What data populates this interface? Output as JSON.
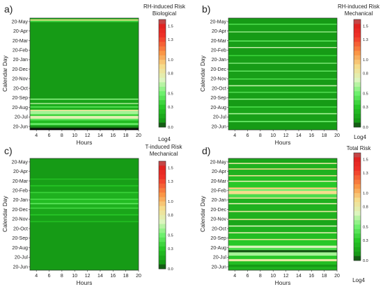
{
  "chart_data": [
    {
      "type": "heatmap",
      "panel_label": "a)",
      "title": "RH-induced Risk",
      "subtitle": "Biological",
      "xlabel": "Hours",
      "ylabel": "Calendar Day",
      "x_ticks": [
        "4",
        "6",
        "8",
        "10",
        "12",
        "14",
        "16",
        "18",
        "20"
      ],
      "y_ticks": [
        "20-May",
        "20-Apr",
        "20-Mar",
        "20-Feb",
        "20-Jan",
        "20-Dec",
        "20-Nov",
        "20-Oct",
        "20-Sep",
        "20-Aug",
        "20-Jul",
        "20-Jun"
      ],
      "xlim": [
        3,
        20
      ],
      "colorbar": {
        "ticks": [
          "1.5",
          "1.3",
          "1.0",
          "0.8",
          "0.5",
          "0.3",
          "0.0"
        ],
        "range": [
          0,
          1.6
        ],
        "scale_label": "Log4"
      },
      "bands": [
        {
          "from": 0.0,
          "to": 0.012,
          "v": 0.2
        },
        {
          "from": 0.012,
          "to": 0.022,
          "v": 0.9
        },
        {
          "from": 0.022,
          "to": 0.035,
          "v": 0.38
        },
        {
          "from": 0.035,
          "to": 0.72,
          "v": 0.1
        },
        {
          "from": 0.72,
          "to": 0.73,
          "v": 0.55
        },
        {
          "from": 0.73,
          "to": 0.76,
          "v": 0.14
        },
        {
          "from": 0.76,
          "to": 0.768,
          "v": 0.65
        },
        {
          "from": 0.768,
          "to": 0.79,
          "v": 0.18
        },
        {
          "from": 0.79,
          "to": 0.8,
          "v": 0.45
        },
        {
          "from": 0.8,
          "to": 0.82,
          "v": 0.2
        },
        {
          "from": 0.82,
          "to": 0.83,
          "v": 0.85
        },
        {
          "from": 0.83,
          "to": 0.86,
          "v": 0.6
        },
        {
          "from": 0.86,
          "to": 0.875,
          "v": 0.35
        },
        {
          "from": 0.875,
          "to": 0.9,
          "v": 0.75
        },
        {
          "from": 0.9,
          "to": 0.915,
          "v": 0.45
        },
        {
          "from": 0.915,
          "to": 0.94,
          "v": 0.25
        },
        {
          "from": 0.94,
          "to": 0.955,
          "v": 0.5
        },
        {
          "from": 0.955,
          "to": 0.97,
          "v": 0.18
        },
        {
          "from": 0.97,
          "to": 0.985,
          "v": 0.05
        },
        {
          "from": 0.985,
          "to": 1.0,
          "v": 0.0
        }
      ]
    },
    {
      "type": "heatmap",
      "panel_label": "b)",
      "title": "RH-induced Risk",
      "subtitle": "Mechanical",
      "xlabel": "Hours",
      "ylabel": "Calendar Day",
      "x_ticks": [
        "4",
        "6",
        "8",
        "10",
        "12",
        "14",
        "16",
        "18",
        "20"
      ],
      "y_ticks": [
        "20-May",
        "20-Apr",
        "20-Mar",
        "20-Feb",
        "20-Jan",
        "20-Dec",
        "20-Nov",
        "20-Oct",
        "20-Sep",
        "20-Aug",
        "20-Jul",
        "20-Jun"
      ],
      "xlim": [
        3,
        20
      ],
      "colorbar": {
        "ticks": [
          "1.5",
          "1.3",
          "1.0",
          "0.8",
          "0.5",
          "0.3",
          "0.0"
        ],
        "range": [
          0,
          1.6
        ],
        "scale_label": "Log4"
      },
      "bands": [
        {
          "from": 0.0,
          "to": 0.05,
          "v": 0.1
        },
        {
          "from": 0.05,
          "to": 0.06,
          "v": 0.4
        },
        {
          "from": 0.06,
          "to": 0.12,
          "v": 0.12
        },
        {
          "from": 0.12,
          "to": 0.128,
          "v": 0.6
        },
        {
          "from": 0.128,
          "to": 0.2,
          "v": 0.1
        },
        {
          "from": 0.2,
          "to": 0.21,
          "v": 0.45
        },
        {
          "from": 0.21,
          "to": 0.26,
          "v": 0.12
        },
        {
          "from": 0.26,
          "to": 0.268,
          "v": 0.7
        },
        {
          "from": 0.268,
          "to": 0.33,
          "v": 0.1
        },
        {
          "from": 0.33,
          "to": 0.34,
          "v": 0.35
        },
        {
          "from": 0.34,
          "to": 0.4,
          "v": 0.12
        },
        {
          "from": 0.4,
          "to": 0.408,
          "v": 0.55
        },
        {
          "from": 0.408,
          "to": 0.47,
          "v": 0.1
        },
        {
          "from": 0.47,
          "to": 0.478,
          "v": 0.5
        },
        {
          "from": 0.478,
          "to": 0.54,
          "v": 0.12
        },
        {
          "from": 0.54,
          "to": 0.55,
          "v": 0.4
        },
        {
          "from": 0.55,
          "to": 0.6,
          "v": 0.1
        },
        {
          "from": 0.6,
          "to": 0.61,
          "v": 0.65
        },
        {
          "from": 0.61,
          "to": 0.66,
          "v": 0.15
        },
        {
          "from": 0.66,
          "to": 0.668,
          "v": 0.45
        },
        {
          "from": 0.668,
          "to": 0.72,
          "v": 0.12
        },
        {
          "from": 0.72,
          "to": 0.73,
          "v": 0.55
        },
        {
          "from": 0.73,
          "to": 0.79,
          "v": 0.1
        },
        {
          "from": 0.79,
          "to": 0.8,
          "v": 0.4
        },
        {
          "from": 0.8,
          "to": 0.85,
          "v": 0.15
        },
        {
          "from": 0.85,
          "to": 0.86,
          "v": 0.6
        },
        {
          "from": 0.86,
          "to": 0.92,
          "v": 0.12
        },
        {
          "from": 0.92,
          "to": 0.93,
          "v": 0.5
        },
        {
          "from": 0.93,
          "to": 1.0,
          "v": 0.1
        }
      ]
    },
    {
      "type": "heatmap",
      "panel_label": "c)",
      "title": "T-induced Risk",
      "subtitle": "Mechanical",
      "xlabel": "Hours",
      "ylabel": "Calendar Day",
      "x_ticks": [
        "4",
        "6",
        "8",
        "10",
        "12",
        "14",
        "16",
        "18",
        "20"
      ],
      "y_ticks": [
        "20-May",
        "20-Apr",
        "20-Mar",
        "20-Feb",
        "20-Jan",
        "20-Dec",
        "20-Nov",
        "20-Oct",
        "20-Sep",
        "20-Aug",
        "20-Jul",
        "20-Jun"
      ],
      "xlim": [
        3,
        20
      ],
      "colorbar": {
        "ticks": [
          "1.5",
          "1.3",
          "1.0",
          "0.8",
          "0.5",
          "0.3",
          "0.0"
        ],
        "range": [
          0,
          1.6
        ],
        "scale_label": "Log4"
      },
      "bands": [
        {
          "from": 0.0,
          "to": 0.18,
          "v": 0.1
        },
        {
          "from": 0.18,
          "to": 0.19,
          "v": 0.25
        },
        {
          "from": 0.19,
          "to": 0.24,
          "v": 0.12
        },
        {
          "from": 0.24,
          "to": 0.25,
          "v": 0.3
        },
        {
          "from": 0.25,
          "to": 0.3,
          "v": 0.14
        },
        {
          "from": 0.3,
          "to": 0.31,
          "v": 0.35
        },
        {
          "from": 0.31,
          "to": 0.36,
          "v": 0.2
        },
        {
          "from": 0.36,
          "to": 0.37,
          "v": 0.4
        },
        {
          "from": 0.37,
          "to": 0.4,
          "v": 0.25
        },
        {
          "from": 0.4,
          "to": 0.41,
          "v": 0.45
        },
        {
          "from": 0.41,
          "to": 0.44,
          "v": 0.2
        },
        {
          "from": 0.44,
          "to": 0.45,
          "v": 0.38
        },
        {
          "from": 0.45,
          "to": 0.5,
          "v": 0.15
        },
        {
          "from": 0.5,
          "to": 0.51,
          "v": 0.3
        },
        {
          "from": 0.51,
          "to": 0.56,
          "v": 0.12
        },
        {
          "from": 0.56,
          "to": 0.57,
          "v": 0.25
        },
        {
          "from": 0.57,
          "to": 1.0,
          "v": 0.1
        }
      ]
    },
    {
      "type": "heatmap",
      "panel_label": "d)",
      "title": "Total Risk",
      "subtitle": "",
      "xlabel": "Hours",
      "ylabel": "Calendar Day",
      "x_ticks": [
        "4",
        "6",
        "8",
        "10",
        "12",
        "14",
        "16",
        "18",
        "20"
      ],
      "y_ticks": [
        "20-May",
        "20-Apr",
        "20-Mar",
        "20-Feb",
        "20-Jan",
        "20-Dec",
        "20-Nov",
        "20-Oct",
        "20-Sep",
        "20-Aug",
        "20-Jul",
        "20-Jun"
      ],
      "xlim": [
        3,
        20
      ],
      "colorbar": {
        "ticks": [
          "1.5",
          "1.3",
          "1.0",
          "0.8",
          "0.5",
          "0.3",
          "0.0"
        ],
        "range": [
          0,
          1.6
        ],
        "scale_label": "Log4"
      },
      "bands": [
        {
          "from": 0.0,
          "to": 0.04,
          "v": 0.15
        },
        {
          "from": 0.04,
          "to": 0.05,
          "v": 0.8
        },
        {
          "from": 0.05,
          "to": 0.09,
          "v": 0.2
        },
        {
          "from": 0.09,
          "to": 0.1,
          "v": 0.9
        },
        {
          "from": 0.1,
          "to": 0.15,
          "v": 0.2
        },
        {
          "from": 0.15,
          "to": 0.16,
          "v": 0.85
        },
        {
          "from": 0.16,
          "to": 0.2,
          "v": 0.25
        },
        {
          "from": 0.2,
          "to": 0.21,
          "v": 0.75
        },
        {
          "from": 0.21,
          "to": 0.26,
          "v": 0.3
        },
        {
          "from": 0.26,
          "to": 0.275,
          "v": 0.95
        },
        {
          "from": 0.275,
          "to": 0.29,
          "v": 0.5
        },
        {
          "from": 0.29,
          "to": 0.32,
          "v": 0.9
        },
        {
          "from": 0.32,
          "to": 0.35,
          "v": 0.4
        },
        {
          "from": 0.35,
          "to": 0.36,
          "v": 0.85
        },
        {
          "from": 0.36,
          "to": 0.4,
          "v": 0.2
        },
        {
          "from": 0.4,
          "to": 0.41,
          "v": 0.75
        },
        {
          "from": 0.41,
          "to": 0.47,
          "v": 0.2
        },
        {
          "from": 0.47,
          "to": 0.48,
          "v": 0.8
        },
        {
          "from": 0.48,
          "to": 0.54,
          "v": 0.2
        },
        {
          "from": 0.54,
          "to": 0.55,
          "v": 0.85
        },
        {
          "from": 0.55,
          "to": 0.6,
          "v": 0.15
        },
        {
          "from": 0.6,
          "to": 0.61,
          "v": 0.7
        },
        {
          "from": 0.61,
          "to": 0.66,
          "v": 0.2
        },
        {
          "from": 0.66,
          "to": 0.67,
          "v": 0.75
        },
        {
          "from": 0.67,
          "to": 0.72,
          "v": 0.25
        },
        {
          "from": 0.72,
          "to": 0.73,
          "v": 0.85
        },
        {
          "from": 0.73,
          "to": 0.78,
          "v": 0.3
        },
        {
          "from": 0.78,
          "to": 0.8,
          "v": 0.7
        },
        {
          "from": 0.8,
          "to": 0.82,
          "v": 0.4
        },
        {
          "from": 0.82,
          "to": 0.84,
          "v": 0.03
        },
        {
          "from": 0.84,
          "to": 0.87,
          "v": 0.6
        },
        {
          "from": 0.87,
          "to": 0.9,
          "v": 0.3
        },
        {
          "from": 0.9,
          "to": 0.92,
          "v": 0.8
        },
        {
          "from": 0.92,
          "to": 0.95,
          "v": 0.25
        },
        {
          "from": 0.95,
          "to": 0.97,
          "v": 0.1
        },
        {
          "from": 0.97,
          "to": 1.0,
          "v": 0.2
        }
      ]
    }
  ]
}
